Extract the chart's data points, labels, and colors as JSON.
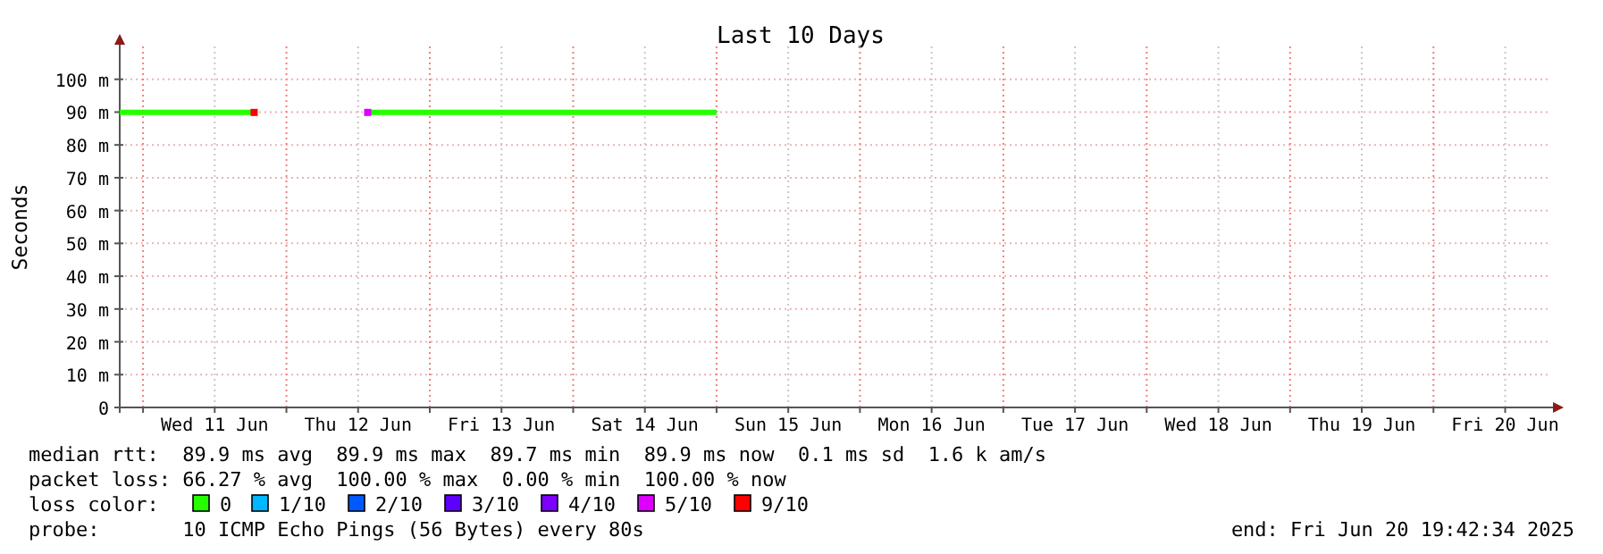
{
  "chart_data": {
    "type": "line",
    "title": "Last 10 Days",
    "ylabel": "Seconds",
    "xlim": [
      "2025-06-10T20:06",
      "2025-06-20T19:42"
    ],
    "xticks": [
      {
        "value": "2025-06-11T00:00",
        "label": null
      },
      {
        "value": "2025-06-11T12:00",
        "label": "Wed 11 Jun"
      },
      {
        "value": "2025-06-12T00:00",
        "label": null
      },
      {
        "value": "2025-06-12T12:00",
        "label": "Thu 12 Jun"
      },
      {
        "value": "2025-06-13T00:00",
        "label": null
      },
      {
        "value": "2025-06-13T12:00",
        "label": "Fri 13 Jun"
      },
      {
        "value": "2025-06-14T00:00",
        "label": null
      },
      {
        "value": "2025-06-14T12:00",
        "label": "Sat 14 Jun"
      },
      {
        "value": "2025-06-15T00:00",
        "label": null
      },
      {
        "value": "2025-06-15T12:00",
        "label": "Sun 15 Jun"
      },
      {
        "value": "2025-06-16T00:00",
        "label": null
      },
      {
        "value": "2025-06-16T12:00",
        "label": "Mon 16 Jun"
      },
      {
        "value": "2025-06-17T00:00",
        "label": null
      },
      {
        "value": "2025-06-17T12:00",
        "label": "Tue 17 Jun"
      },
      {
        "value": "2025-06-18T00:00",
        "label": null
      },
      {
        "value": "2025-06-18T12:00",
        "label": "Wed 18 Jun"
      },
      {
        "value": "2025-06-19T00:00",
        "label": null
      },
      {
        "value": "2025-06-19T12:00",
        "label": "Thu 19 Jun"
      },
      {
        "value": "2025-06-20T00:00",
        "label": null
      },
      {
        "value": "2025-06-20T12:00",
        "label": "Fri 20 Jun"
      }
    ],
    "ylim": [
      0,
      110
    ],
    "yticks": [
      0,
      {
        "value": 10,
        "label": "10 m"
      },
      {
        "value": 20,
        "label": "20 m"
      },
      {
        "value": 30,
        "label": "30 m"
      },
      {
        "value": 40,
        "label": "40 m"
      },
      {
        "value": 50,
        "label": "50 m"
      },
      {
        "value": 60,
        "label": "60 m"
      },
      {
        "value": 70,
        "label": "70 m"
      },
      {
        "value": 80,
        "label": "80 m"
      },
      {
        "value": 90,
        "label": "90 m"
      },
      {
        "value": 100,
        "label": "100 m"
      }
    ],
    "grid": true,
    "legend": "bottom",
    "legend_title": "loss color:",
    "line_style": "solid",
    "series": [
      {
        "name": "0",
        "color": "#26ff00",
        "x": [
          "2025-06-10T20:06",
          "2025-06-11T06:00",
          "2025-06-11T18:18",
          "2025-06-12T00:00",
          "2025-06-12T13:40",
          "2025-06-13T00:00",
          "2025-06-13T12:00",
          "2025-06-14T00:00",
          "2025-06-14T12:00",
          "2025-06-15T00:00"
        ],
        "values": [
          89.9,
          89.9,
          89.9,
          null,
          89.9,
          89.9,
          89.9,
          89.9,
          89.9,
          89.9
        ]
      },
      {
        "name": "1/10",
        "color": "#00b8ff",
        "type": "scatter",
        "marker": "square"
      },
      {
        "name": "2/10",
        "color": "#0059ff",
        "type": "scatter",
        "marker": "square"
      },
      {
        "name": "3/10",
        "color": "#5e00ff",
        "type": "scatter",
        "marker": "square"
      },
      {
        "name": "4/10",
        "color": "#7e00ff",
        "type": "scatter",
        "marker": "square"
      },
      {
        "name": "5/10",
        "color": "#dd00ff",
        "type": "scatter",
        "marker": "square",
        "x": [
          "2025-06-12T13:36"
        ],
        "values": [
          89.9
        ]
      },
      {
        "name": "9/10",
        "color": "#ff0000",
        "type": "scatter",
        "marker": "square",
        "x": [
          "2025-06-11T18:36"
        ],
        "values": [
          89.9
        ]
      }
    ],
    "annotations": [
      "median rtt:  89.9 ms avg  89.9 ms max  89.7 ms min  89.9 ms now  0.1 ms sd  1.6 k am/s",
      "packet loss: 66.27 % avg  100.00 % max  0.00 % min  100.00 % now",
      "probe:       10 ICMP Echo Pings (56 Bytes) every 80s",
      "end: Fri Jun 20 19:42:34 2025"
    ]
  }
}
